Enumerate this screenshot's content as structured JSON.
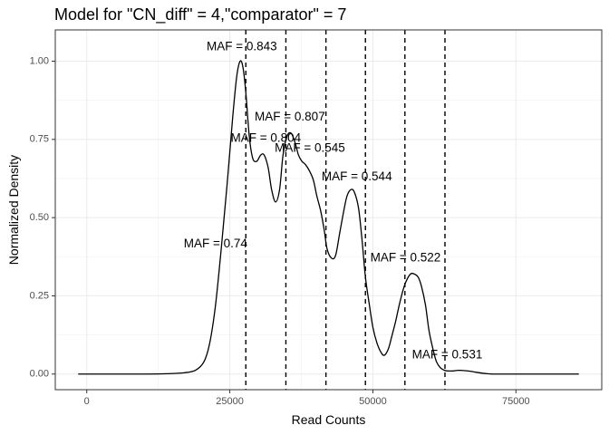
{
  "chart_data": {
    "type": "line",
    "title": "Model for \"CN_diff\" = 4,\"comparator\" = 7",
    "xlabel": "Read Counts",
    "ylabel": "Normalized Density",
    "xlim": [
      -5500,
      90000
    ],
    "ylim": [
      -0.05,
      1.1
    ],
    "x_ticks": [
      0,
      25000,
      50000,
      75000
    ],
    "x_tick_labels": [
      "0",
      "25000",
      "50000",
      "75000"
    ],
    "y_ticks": [
      0,
      0.25,
      0.5,
      0.75,
      1.0
    ],
    "y_tick_labels": [
      "0.00",
      "0.25",
      "0.50",
      "0.75",
      "1.00"
    ],
    "grid": true,
    "series": [
      {
        "x": [
          -1500,
          5000,
          10000,
          14000,
          17000,
          19000,
          20500,
          21500,
          22500,
          23500,
          24500,
          25500,
          26200,
          26800,
          27300,
          27800,
          28400,
          29000,
          29700,
          30400,
          31000,
          31700,
          32300,
          33000,
          33700,
          34300,
          35000,
          35700,
          36400,
          37000,
          37600,
          38200,
          38900,
          39600,
          40200,
          40900,
          41500,
          42000,
          42800,
          43500,
          44200,
          44900,
          45500,
          46200,
          46800,
          47500,
          48100,
          48700,
          49400,
          50000,
          50700,
          51400,
          52000,
          52700,
          53300,
          54000,
          54600,
          55300,
          55900,
          56600,
          57200,
          57900,
          58500,
          59200,
          59800,
          60500,
          61100,
          61800,
          62500,
          63100,
          64000,
          65000,
          66500,
          68000,
          69000,
          70000,
          71000,
          72500,
          75000,
          80000,
          86000
        ],
        "y": [
          0.0,
          0.0,
          0.0,
          0.001,
          0.004,
          0.012,
          0.04,
          0.1,
          0.22,
          0.4,
          0.6,
          0.82,
          0.95,
          1.0,
          0.98,
          0.9,
          0.76,
          0.69,
          0.68,
          0.7,
          0.7,
          0.66,
          0.59,
          0.55,
          0.59,
          0.7,
          0.76,
          0.77,
          0.74,
          0.7,
          0.68,
          0.67,
          0.65,
          0.62,
          0.57,
          0.52,
          0.46,
          0.4,
          0.37,
          0.38,
          0.45,
          0.52,
          0.57,
          0.59,
          0.58,
          0.53,
          0.43,
          0.31,
          0.22,
          0.15,
          0.1,
          0.07,
          0.06,
          0.08,
          0.12,
          0.17,
          0.22,
          0.27,
          0.3,
          0.32,
          0.32,
          0.31,
          0.28,
          0.22,
          0.14,
          0.08,
          0.04,
          0.02,
          0.012,
          0.01,
          0.01,
          0.012,
          0.01,
          0.006,
          0.003,
          0.001,
          0.0,
          0.0,
          0.0,
          0.0,
          0.0
        ]
      }
    ],
    "vlines": [
      27800,
      34800,
      41800,
      48700,
      55600,
      62600
    ],
    "annotations": [
      {
        "text": "MAF = 0.843",
        "x": 27100,
        "y": 1.045
      },
      {
        "text": "MAF = 0.807",
        "x": 35500,
        "y": 0.82
      },
      {
        "text": "MAF = 0.804",
        "x": 31300,
        "y": 0.752
      },
      {
        "text": "MAF = 0.545",
        "x": 39000,
        "y": 0.72
      },
      {
        "text": "MAF = 0.544",
        "x": 47200,
        "y": 0.63
      },
      {
        "text": "MAF = 0.74",
        "x": 22500,
        "y": 0.415
      },
      {
        "text": "MAF = 0.522",
        "x": 55700,
        "y": 0.37
      },
      {
        "text": "MAF = 0.531",
        "x": 63000,
        "y": 0.06
      }
    ]
  }
}
